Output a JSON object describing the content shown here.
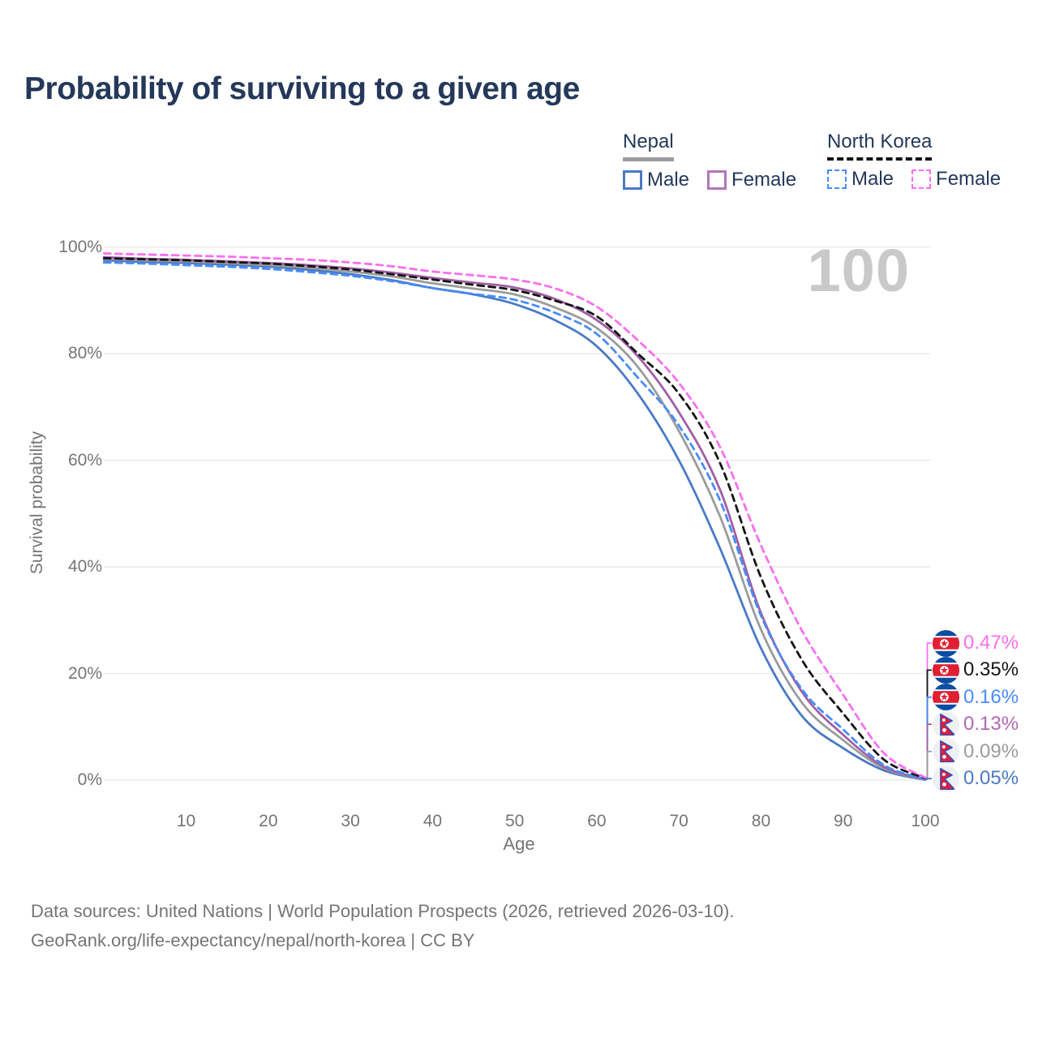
{
  "title": "Probability of surviving to a given age",
  "watermark": "100",
  "legend": {
    "groups": [
      {
        "name": "Nepal",
        "underline": "solid",
        "underline_color": "#9b9b9b",
        "items": [
          {
            "label": "Male",
            "color": "#4a7ac4",
            "dashed": false
          },
          {
            "label": "Female",
            "color": "#b077b8",
            "dashed": false
          }
        ]
      },
      {
        "name": "North Korea",
        "underline": "dashed",
        "underline_color": "#141414",
        "items": [
          {
            "label": "Male",
            "color": "#488cfa",
            "dashed": true
          },
          {
            "label": "Female",
            "color": "#fa6ef0",
            "dashed": true
          }
        ]
      }
    ]
  },
  "chart_data": {
    "type": "line",
    "title": "Probability of surviving to a given age",
    "xlabel": "Age",
    "ylabel": "Survival probability",
    "xlim": [
      0,
      100
    ],
    "ylim": [
      0,
      100
    ],
    "grid": "horizontal-only",
    "legend_position": "top-right",
    "yticks": [
      0,
      20,
      40,
      60,
      80,
      100
    ],
    "ytick_labels": [
      "0%",
      "20%",
      "40%",
      "60%",
      "80%",
      "100%"
    ],
    "xticks": [
      10,
      20,
      30,
      40,
      50,
      60,
      70,
      80,
      90,
      100
    ],
    "xtick_labels": [
      "10",
      "20",
      "30",
      "40",
      "50",
      "60",
      "70",
      "80",
      "90",
      "100"
    ],
    "x": [
      0,
      5,
      10,
      15,
      20,
      25,
      30,
      35,
      40,
      45,
      50,
      55,
      60,
      65,
      70,
      75,
      80,
      85,
      90,
      95,
      100
    ],
    "series": [
      {
        "id": "north-korea-female",
        "name": "North Korea Female",
        "flag": "north-korea",
        "color": "#fa6ef0",
        "label_color": "#fa6ef0",
        "dashed": true,
        "end_label": "0.47%",
        "values": [
          98.8,
          98.6,
          98.4,
          98.2,
          97.9,
          97.6,
          97.1,
          96.4,
          95.4,
          94.7,
          93.9,
          92.2,
          88.8,
          82.5,
          74.5,
          62.5,
          44.0,
          28.0,
          16.0,
          5.0,
          0.47
        ]
      },
      {
        "id": "north-korea-total",
        "name": "North Korea",
        "flag": "north-korea",
        "color": "#141414",
        "label_color": "#141414",
        "dashed": true,
        "end_label": "0.35%",
        "values": [
          97.9,
          97.7,
          97.5,
          97.2,
          96.9,
          96.4,
          95.8,
          94.9,
          93.9,
          92.9,
          91.9,
          89.9,
          87.0,
          80.0,
          72.5,
          59.5,
          38.0,
          22.5,
          12.5,
          3.8,
          0.35
        ]
      },
      {
        "id": "north-korea-male",
        "name": "North Korea Male",
        "flag": "north-korea",
        "color": "#488cfa",
        "label_color": "#488cfa",
        "dashed": true,
        "end_label": "0.16%",
        "values": [
          97.1,
          96.9,
          96.6,
          96.3,
          95.9,
          95.3,
          94.6,
          93.6,
          92.3,
          91.2,
          90.1,
          87.6,
          83.7,
          75.5,
          66.5,
          52.5,
          30.8,
          17.0,
          9.5,
          2.8,
          0.16
        ]
      },
      {
        "id": "nepal-female",
        "name": "Nepal Female",
        "flag": "nepal",
        "color": "#a05fa5",
        "label_color": "#b168b5",
        "dashed": false,
        "end_label": "0.13%",
        "values": [
          98.1,
          97.8,
          97.6,
          97.3,
          97.0,
          96.6,
          96.0,
          95.2,
          94.2,
          93.3,
          92.4,
          90.2,
          86.3,
          79.5,
          69.0,
          54.5,
          31.3,
          16.5,
          8.5,
          2.5,
          0.13
        ]
      },
      {
        "id": "nepal-total",
        "name": "Nepal",
        "flag": "nepal",
        "color": "#9b9b9b",
        "label_color": "#9b9b9b",
        "dashed": false,
        "end_label": "0.09%",
        "values": [
          97.8,
          97.5,
          97.3,
          97.0,
          96.6,
          96.1,
          95.4,
          94.5,
          93.2,
          92.2,
          91.1,
          88.6,
          84.8,
          77.5,
          65.5,
          49.5,
          28.2,
          14.5,
          7.5,
          2.2,
          0.09
        ]
      },
      {
        "id": "nepal-male",
        "name": "Nepal Male",
        "flag": "nepal",
        "color": "#4a7ac4",
        "label_color": "#4a7ac4",
        "dashed": false,
        "end_label": "0.05%",
        "values": [
          97.5,
          97.2,
          97.0,
          96.7,
          96.3,
          95.7,
          94.9,
          93.8,
          92.3,
          91.1,
          89.3,
          86.2,
          81.4,
          72.5,
          60.0,
          43.5,
          24.7,
          12.0,
          6.0,
          1.8,
          0.05
        ]
      }
    ]
  },
  "footer": {
    "line1": "Data sources: United Nations | World Population Prospects (2026, retrieved 2026-03-10).",
    "line2": "GeoRank.org/life-expectancy/nepal/north-korea | CC BY"
  }
}
